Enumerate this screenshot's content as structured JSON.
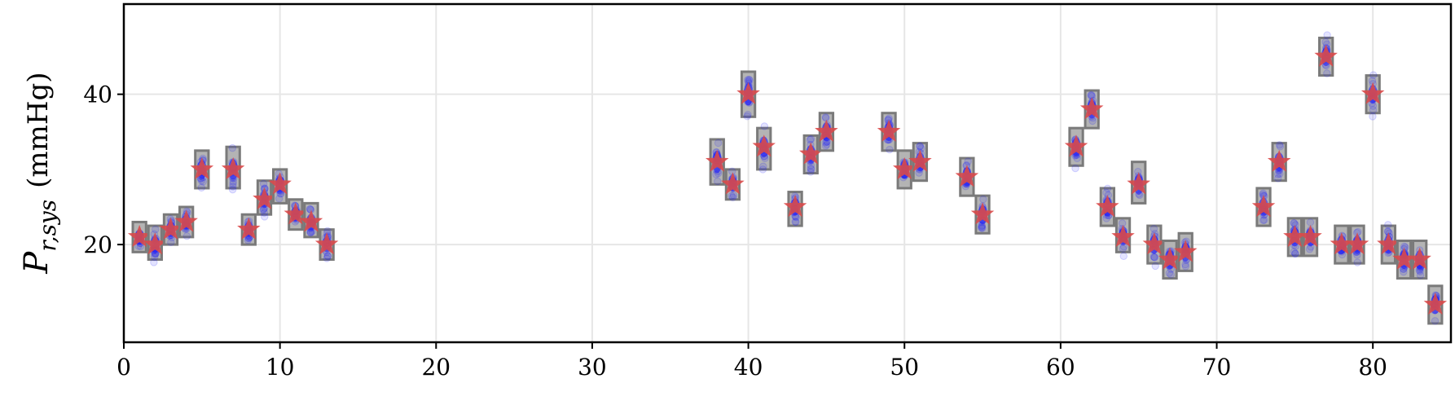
{
  "chart_data": {
    "type": "scatter",
    "ylabel": "P_{r,sys} (mmHg)",
    "ylabel_parts": {
      "symbol": "P",
      "subscript": "r,sys",
      "unit": "(mmHg)"
    },
    "xlim": [
      0,
      85
    ],
    "ylim": [
      7,
      52
    ],
    "xticks": [
      0,
      10,
      20,
      30,
      40,
      50,
      60,
      70,
      80
    ],
    "yticks": [
      20,
      40
    ],
    "grid": true,
    "colors": {
      "marker": "#d94a4a",
      "box_fill": "#b4b4b4",
      "box_edge": "#7a7a7a",
      "samples": "#1a1aff",
      "grid": "#e6e6e6"
    },
    "points": [
      {
        "x": 1,
        "measured": 21,
        "box": [
          19,
          23
        ]
      },
      {
        "x": 2,
        "measured": 20,
        "box": [
          18,
          22.5
        ]
      },
      {
        "x": 3,
        "measured": 22,
        "box": [
          20,
          24
        ]
      },
      {
        "x": 4,
        "measured": 23,
        "box": [
          21,
          25
        ]
      },
      {
        "x": 5,
        "measured": 30,
        "box": [
          27.5,
          32.5
        ]
      },
      {
        "x": 7,
        "measured": 30,
        "box": [
          27.5,
          33
        ]
      },
      {
        "x": 8,
        "measured": 22,
        "box": [
          20,
          24
        ]
      },
      {
        "x": 9,
        "measured": 26,
        "box": [
          24,
          28.5
        ]
      },
      {
        "x": 10,
        "measured": 28,
        "box": [
          25.5,
          30
        ]
      },
      {
        "x": 11,
        "measured": 24,
        "box": [
          22,
          26
        ]
      },
      {
        "x": 12,
        "measured": 23,
        "box": [
          21,
          25.5
        ]
      },
      {
        "x": 13,
        "measured": 20,
        "box": [
          18,
          22
        ]
      },
      {
        "x": 38,
        "measured": 31,
        "box": [
          28,
          34
        ]
      },
      {
        "x": 39,
        "measured": 28,
        "box": [
          26,
          30
        ]
      },
      {
        "x": 40,
        "measured": 40,
        "box": [
          37,
          43
        ]
      },
      {
        "x": 41,
        "measured": 33,
        "box": [
          30,
          35.5
        ]
      },
      {
        "x": 43,
        "measured": 25,
        "box": [
          22.5,
          27
        ]
      },
      {
        "x": 44,
        "measured": 32,
        "box": [
          29.5,
          34.5
        ]
      },
      {
        "x": 45,
        "measured": 35,
        "box": [
          32.5,
          37.5
        ]
      },
      {
        "x": 49,
        "measured": 35,
        "box": [
          32.5,
          37.5
        ]
      },
      {
        "x": 50,
        "measured": 30,
        "box": [
          27.5,
          32.5
        ]
      },
      {
        "x": 51,
        "measured": 31,
        "box": [
          28.5,
          33.5
        ]
      },
      {
        "x": 54,
        "measured": 29,
        "box": [
          26.5,
          31.5
        ]
      },
      {
        "x": 55,
        "measured": 24,
        "box": [
          21.5,
          26.5
        ]
      },
      {
        "x": 61,
        "measured": 33,
        "box": [
          30.5,
          35.5
        ]
      },
      {
        "x": 62,
        "measured": 38,
        "box": [
          35.5,
          40.5
        ]
      },
      {
        "x": 63,
        "measured": 25,
        "box": [
          22.5,
          27.5
        ]
      },
      {
        "x": 64,
        "measured": 21,
        "box": [
          19,
          23.5
        ]
      },
      {
        "x": 65,
        "measured": 28,
        "box": [
          25.5,
          31
        ]
      },
      {
        "x": 66,
        "measured": 20,
        "box": [
          17.5,
          22.5
        ]
      },
      {
        "x": 67,
        "measured": 18,
        "box": [
          15.5,
          20.5
        ]
      },
      {
        "x": 68,
        "measured": 19,
        "box": [
          16.5,
          21.5
        ]
      },
      {
        "x": 73,
        "measured": 25,
        "box": [
          22.5,
          27.5
        ]
      },
      {
        "x": 74,
        "measured": 31,
        "box": [
          28.5,
          33.5
        ]
      },
      {
        "x": 75,
        "measured": 21,
        "box": [
          18.5,
          23.5
        ]
      },
      {
        "x": 76,
        "measured": 21,
        "box": [
          18.5,
          23.5
        ]
      },
      {
        "x": 77,
        "measured": 45,
        "box": [
          42.5,
          47.5
        ]
      },
      {
        "x": 78,
        "measured": 20,
        "box": [
          17.5,
          22.5
        ]
      },
      {
        "x": 79,
        "measured": 20,
        "box": [
          17.5,
          22.5
        ]
      },
      {
        "x": 80,
        "measured": 40,
        "box": [
          37.5,
          42.5
        ]
      },
      {
        "x": 81,
        "measured": 20,
        "box": [
          17.5,
          22.5
        ]
      },
      {
        "x": 82,
        "measured": 18,
        "box": [
          15.5,
          20.5
        ]
      },
      {
        "x": 83,
        "measured": 18,
        "box": [
          15.5,
          20.5
        ]
      },
      {
        "x": 84,
        "measured": 12,
        "box": [
          9.5,
          14.5
        ]
      }
    ]
  }
}
